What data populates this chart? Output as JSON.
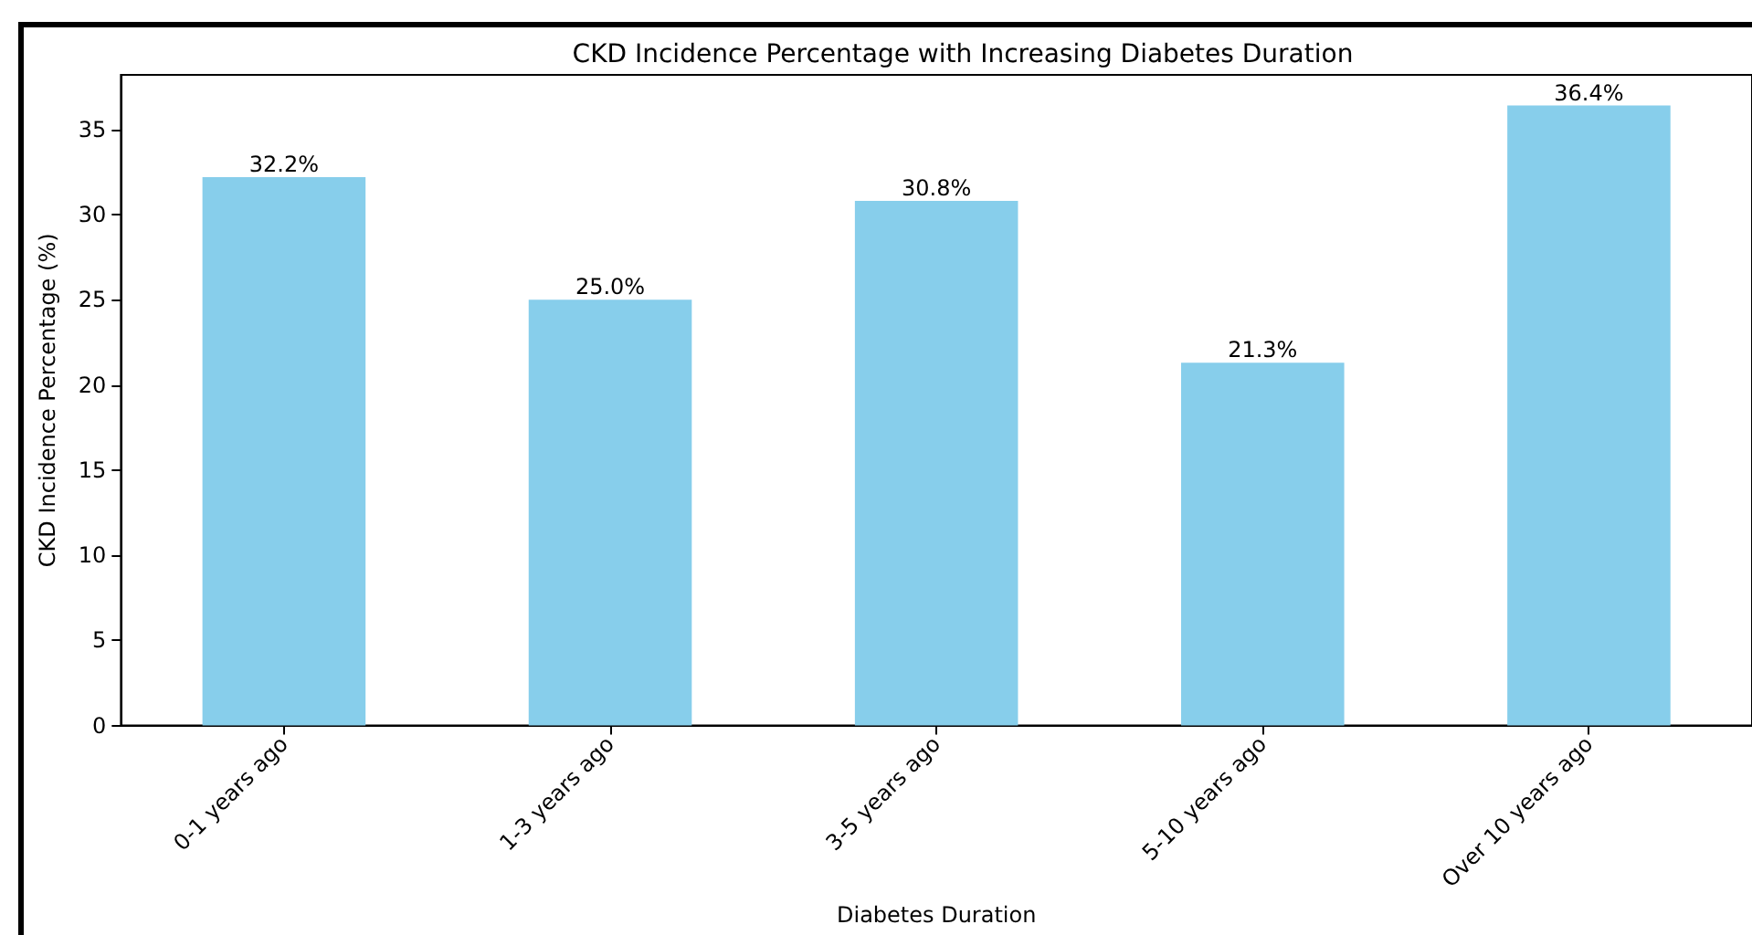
{
  "chart_data": {
    "type": "bar",
    "title": "CKD Incidence Percentage with Increasing Diabetes Duration",
    "xlabel": "Diabetes Duration",
    "ylabel": "CKD Incidence Percentage (%)",
    "categories": [
      "0-1 years ago",
      "1-3 years ago",
      "3-5 years ago",
      "5-10 years ago",
      "Over 10 years ago"
    ],
    "values": [
      32.2,
      25.0,
      30.8,
      21.3,
      36.4
    ],
    "value_labels": [
      "32.2%",
      "25.0%",
      "30.8%",
      "21.3%",
      "36.4%"
    ],
    "color": "#87ceeb",
    "ylim": [
      0,
      38.2
    ],
    "yticks": [
      0,
      5,
      10,
      15,
      20,
      25,
      30,
      35
    ],
    "grid": false
  }
}
